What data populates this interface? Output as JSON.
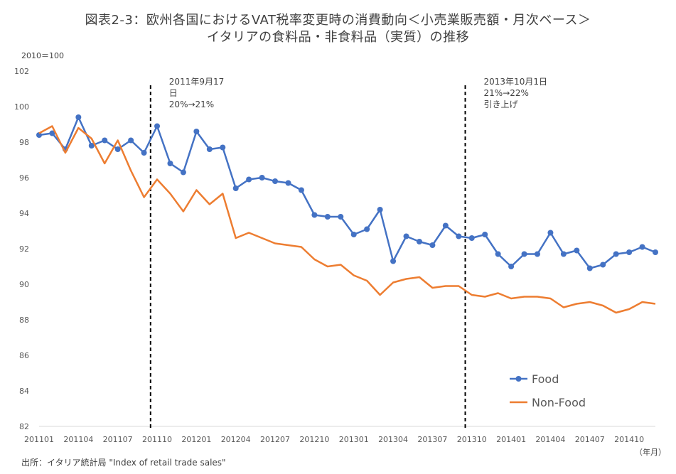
{
  "chart_data": {
    "type": "line",
    "title": "図表2-3：欧州各国におけるVAT税率変更時の消費動向＜小売業販売額・月次ベース＞",
    "subtitle": "イタリアの食料品・非食料品（実質）の推移",
    "y_unit_label": "2010＝100",
    "x_unit_label": "（年月）",
    "source": "出所：イタリア統計局 \"Index of retail trade sales\"",
    "ylim": [
      82,
      102
    ],
    "yticks": [
      82,
      84,
      86,
      88,
      90,
      92,
      94,
      96,
      98,
      100,
      102
    ],
    "x_tick_labels": [
      "201101",
      "201104",
      "201107",
      "201110",
      "201201",
      "201204",
      "201207",
      "201210",
      "201301",
      "201304",
      "201307",
      "201310",
      "201401",
      "201404",
      "201407",
      "201410"
    ],
    "x_tick_step": 3,
    "n_points": 48,
    "grid": false,
    "legend": "bottom-right",
    "series": [
      {
        "name": "Food",
        "color": "#4472c4",
        "marker": "circle",
        "values": [
          98.4,
          98.5,
          97.6,
          99.4,
          97.8,
          98.1,
          97.6,
          98.1,
          97.4,
          98.9,
          96.8,
          96.3,
          98.6,
          97.6,
          97.7,
          95.4,
          95.9,
          96.0,
          95.8,
          95.7,
          95.3,
          93.9,
          93.8,
          93.8,
          92.8,
          93.1,
          94.2,
          91.3,
          92.7,
          92.4,
          92.2,
          93.3,
          92.7,
          92.6,
          92.8,
          91.7,
          91.0,
          91.7,
          91.7,
          92.9,
          91.7,
          91.9,
          90.9,
          91.1,
          91.7,
          91.8,
          92.1,
          91.8
        ]
      },
      {
        "name": "Non-Food",
        "color": "#ed7d31",
        "marker": "none",
        "values": [
          98.5,
          98.9,
          97.4,
          98.8,
          98.2,
          96.8,
          98.1,
          96.4,
          94.9,
          95.9,
          95.1,
          94.1,
          95.3,
          94.5,
          95.1,
          92.6,
          92.9,
          92.6,
          92.3,
          92.2,
          92.1,
          91.4,
          91.0,
          91.1,
          90.5,
          90.2,
          89.4,
          90.1,
          90.3,
          90.4,
          89.8,
          89.9,
          89.9,
          89.4,
          89.3,
          89.5,
          89.2,
          89.3,
          89.3,
          89.2,
          88.7,
          88.9,
          89.0,
          88.8,
          88.4,
          88.6,
          89.0,
          88.9
        ]
      }
    ],
    "annotations": [
      {
        "at_index": 8.5,
        "lines": [
          "2011年9月17",
          "日",
          "20%→21%"
        ]
      },
      {
        "at_index": 32.5,
        "lines": [
          "2013年10月1日",
          "21%→22%",
          "引き上げ"
        ]
      }
    ]
  }
}
